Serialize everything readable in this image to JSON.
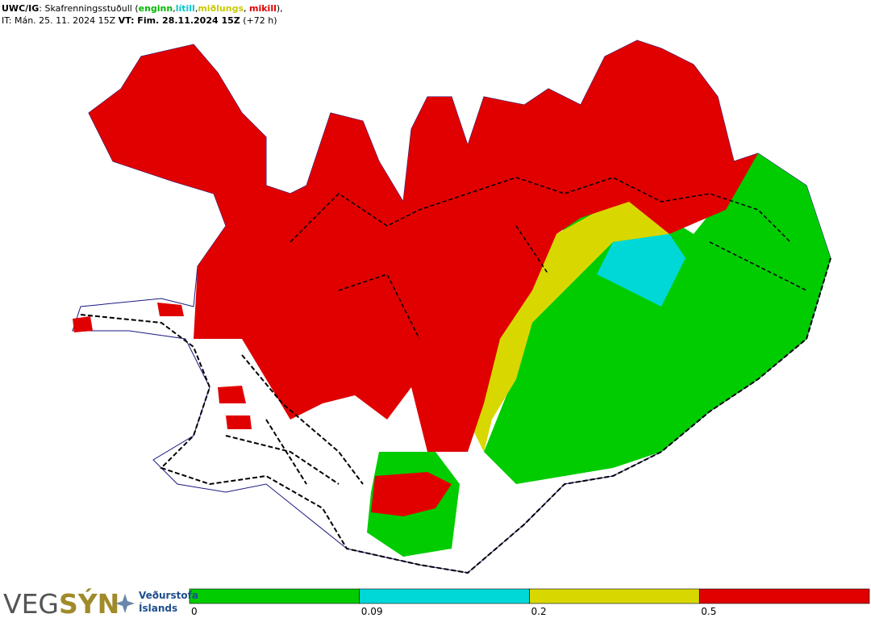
{
  "header": {
    "line1": [
      {
        "text": "UWC/IG",
        "bold": true
      },
      {
        "text": ": Skafrenningsstuðull ("
      },
      {
        "text": "enginn",
        "color": "#00b800",
        "bold": true
      },
      {
        "text": ","
      },
      {
        "text": "lítill",
        "color": "#00c8d0",
        "bold": true
      },
      {
        "text": ","
      },
      {
        "text": "miðlungs",
        "color": "#c8c800",
        "bold": true
      },
      {
        "text": ", "
      },
      {
        "text": "mikill",
        "color": "#e00000",
        "bold": true
      },
      {
        "text": "),"
      }
    ],
    "line2": [
      {
        "text": "IT: Mán. 25. 11. 2024 15Z "
      },
      {
        "text": "VT: Fim. 28.11.2024 15Z",
        "bold": true
      },
      {
        "text": " (+72 h)"
      }
    ]
  },
  "legend": {
    "ticks": [
      0,
      0.09,
      0.2,
      0.5
    ],
    "colors": [
      "#00cc00",
      "#00d8d8",
      "#d8d800",
      "#e00000"
    ]
  },
  "logo": {
    "brand_a": "VEG",
    "brand_b": "SÝN",
    "org_line1": "Veðurstofa",
    "org_line2": "Íslands"
  }
}
